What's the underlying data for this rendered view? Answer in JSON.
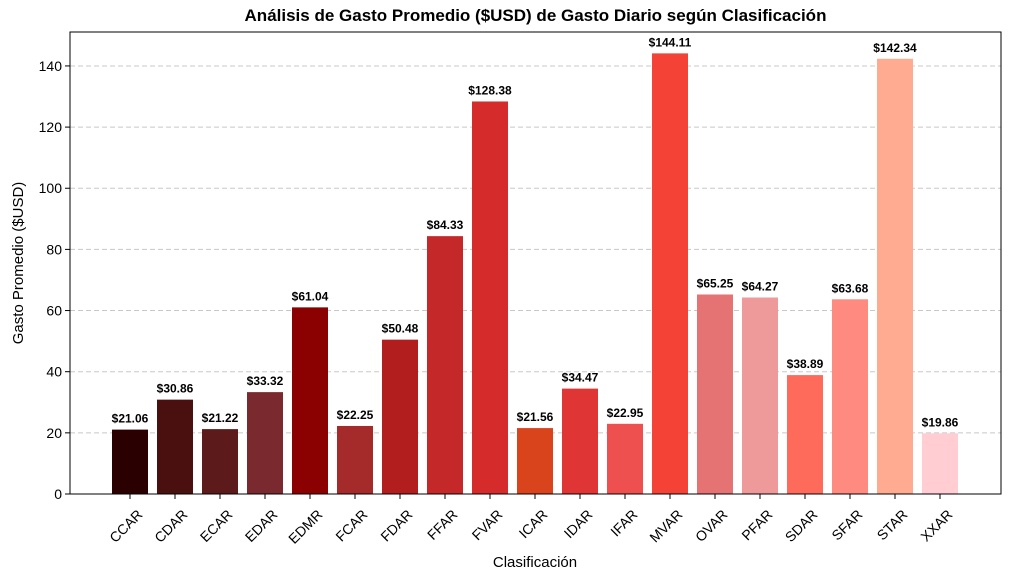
{
  "chart_data": {
    "type": "bar",
    "title": "Análisis de Gasto Promedio ($USD) de Gasto Diario según Clasificación",
    "xlabel": "Clasificación",
    "ylabel": "Gasto Promedio ($USD)",
    "ylim": [
      0,
      151.1
    ],
    "yticks": [
      0,
      20,
      40,
      60,
      80,
      100,
      120,
      140
    ],
    "grid": "horizontal dashed",
    "categories": [
      "CCAR",
      "CDAR",
      "ECAR",
      "EDAR",
      "EDMR",
      "FCAR",
      "FDAR",
      "FFAR",
      "FVAR",
      "ICAR",
      "IDAR",
      "IFAR",
      "MVAR",
      "OVAR",
      "PFAR",
      "SDAR",
      "SFAR",
      "STAR",
      "XXAR"
    ],
    "values": [
      21.06,
      30.86,
      21.22,
      33.32,
      61.04,
      22.25,
      50.48,
      84.33,
      128.38,
      21.56,
      34.47,
      22.95,
      144.11,
      65.25,
      64.27,
      38.89,
      63.68,
      142.34,
      19.86
    ],
    "data_labels": [
      "$21.06",
      "$30.86",
      "$21.22",
      "$33.32",
      "$61.04",
      "$22.25",
      "$50.48",
      "$84.33",
      "$128.38",
      "$21.56",
      "$34.47",
      "$22.95",
      "$144.11",
      "$65.25",
      "$64.27",
      "$38.89",
      "$63.68",
      "$142.34",
      "$19.86"
    ],
    "colors": [
      "#2b0000",
      "#4a1010",
      "#5c1a1a",
      "#7a2a2e",
      "#8b0000",
      "#a52a2a",
      "#b21e1e",
      "#c52828",
      "#d62b2b",
      "#d9441c",
      "#e03535",
      "#ee5050",
      "#f44336",
      "#e57373",
      "#ef9a9a",
      "#ff6b5b",
      "#ff8a80",
      "#ffab91",
      "#ffcdd2"
    ]
  }
}
